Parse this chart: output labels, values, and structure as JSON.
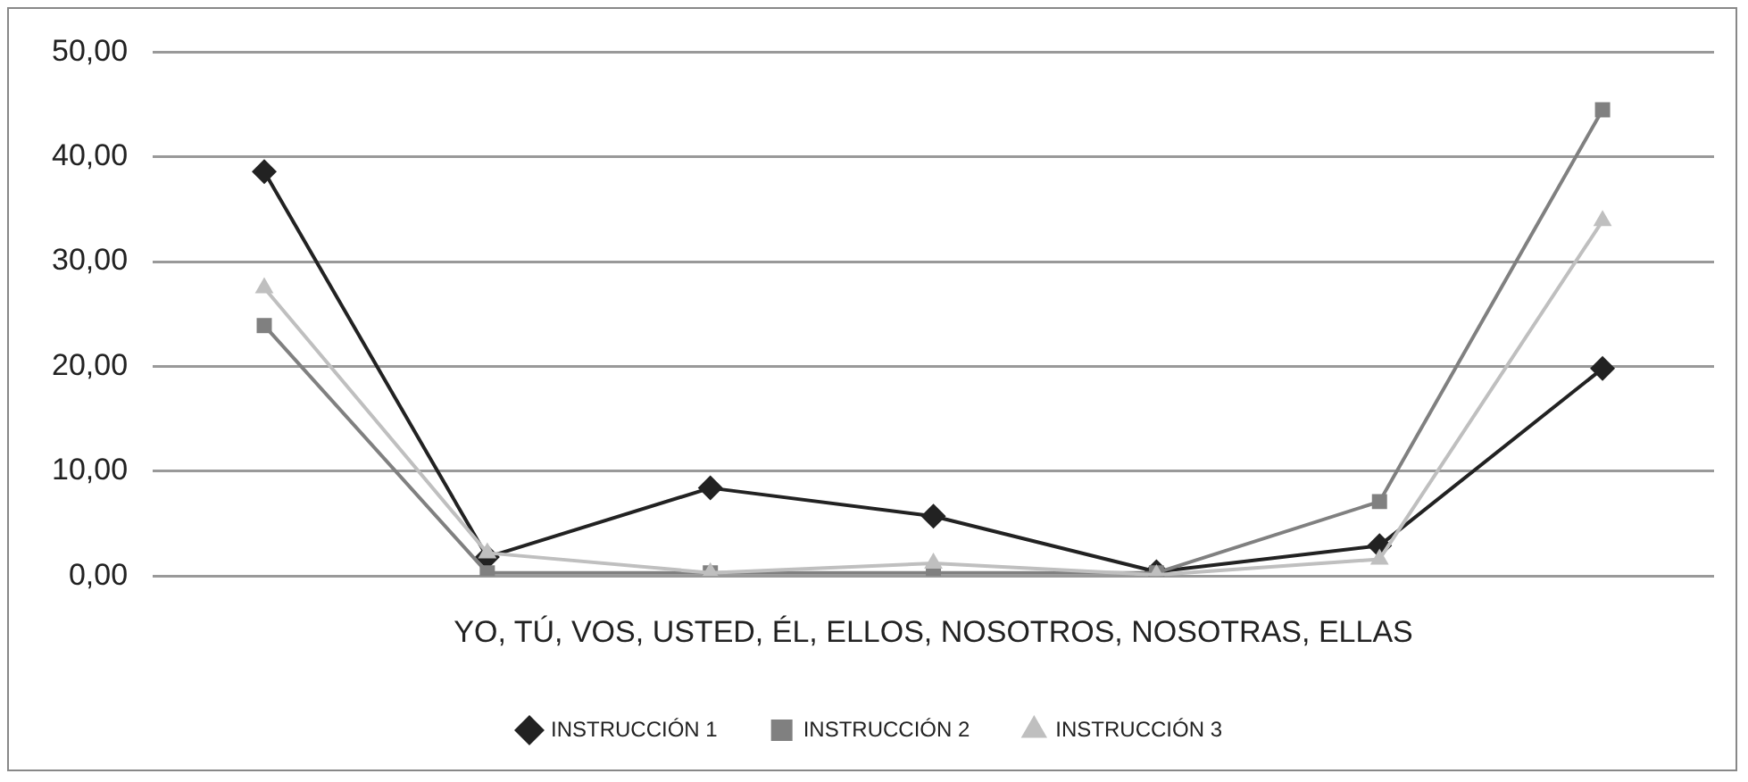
{
  "chart_data": {
    "type": "line",
    "xlabel": "YO, TÚ, VOS, USTED, ÉL, ELLOS, NOSOTROS, NOSOTRAS, ELLAS",
    "categories": [
      null,
      null,
      null,
      null,
      null,
      null,
      null
    ],
    "series": [
      {
        "name": "INSTRUCCIÓN 1",
        "color": "#222222",
        "marker": "diamond",
        "values": [
          38.6,
          1.8,
          8.4,
          5.7,
          0.4,
          2.9,
          19.8
        ]
      },
      {
        "name": "INSTRUCCIÓN 2",
        "color": "#808080",
        "marker": "square",
        "values": [
          23.9,
          0.3,
          0.3,
          0.3,
          0.3,
          7.1,
          44.5
        ]
      },
      {
        "name": "INSTRUCCIÓN 3",
        "color": "#bfbfbf",
        "marker": "triangle",
        "values": [
          27.5,
          2.2,
          0.3,
          1.2,
          0.1,
          1.6,
          33.9
        ]
      }
    ],
    "ylim": [
      0,
      50
    ],
    "yticks": [
      {
        "value": 0,
        "label": "0,00"
      },
      {
        "value": 10,
        "label": "10,00"
      },
      {
        "value": 20,
        "label": "20,00"
      },
      {
        "value": 30,
        "label": "30,00"
      },
      {
        "value": 40,
        "label": "40,00"
      },
      {
        "value": 50,
        "label": "50,00"
      }
    ],
    "grid": "y",
    "legend": "bottom",
    "tick_labels": "y"
  }
}
